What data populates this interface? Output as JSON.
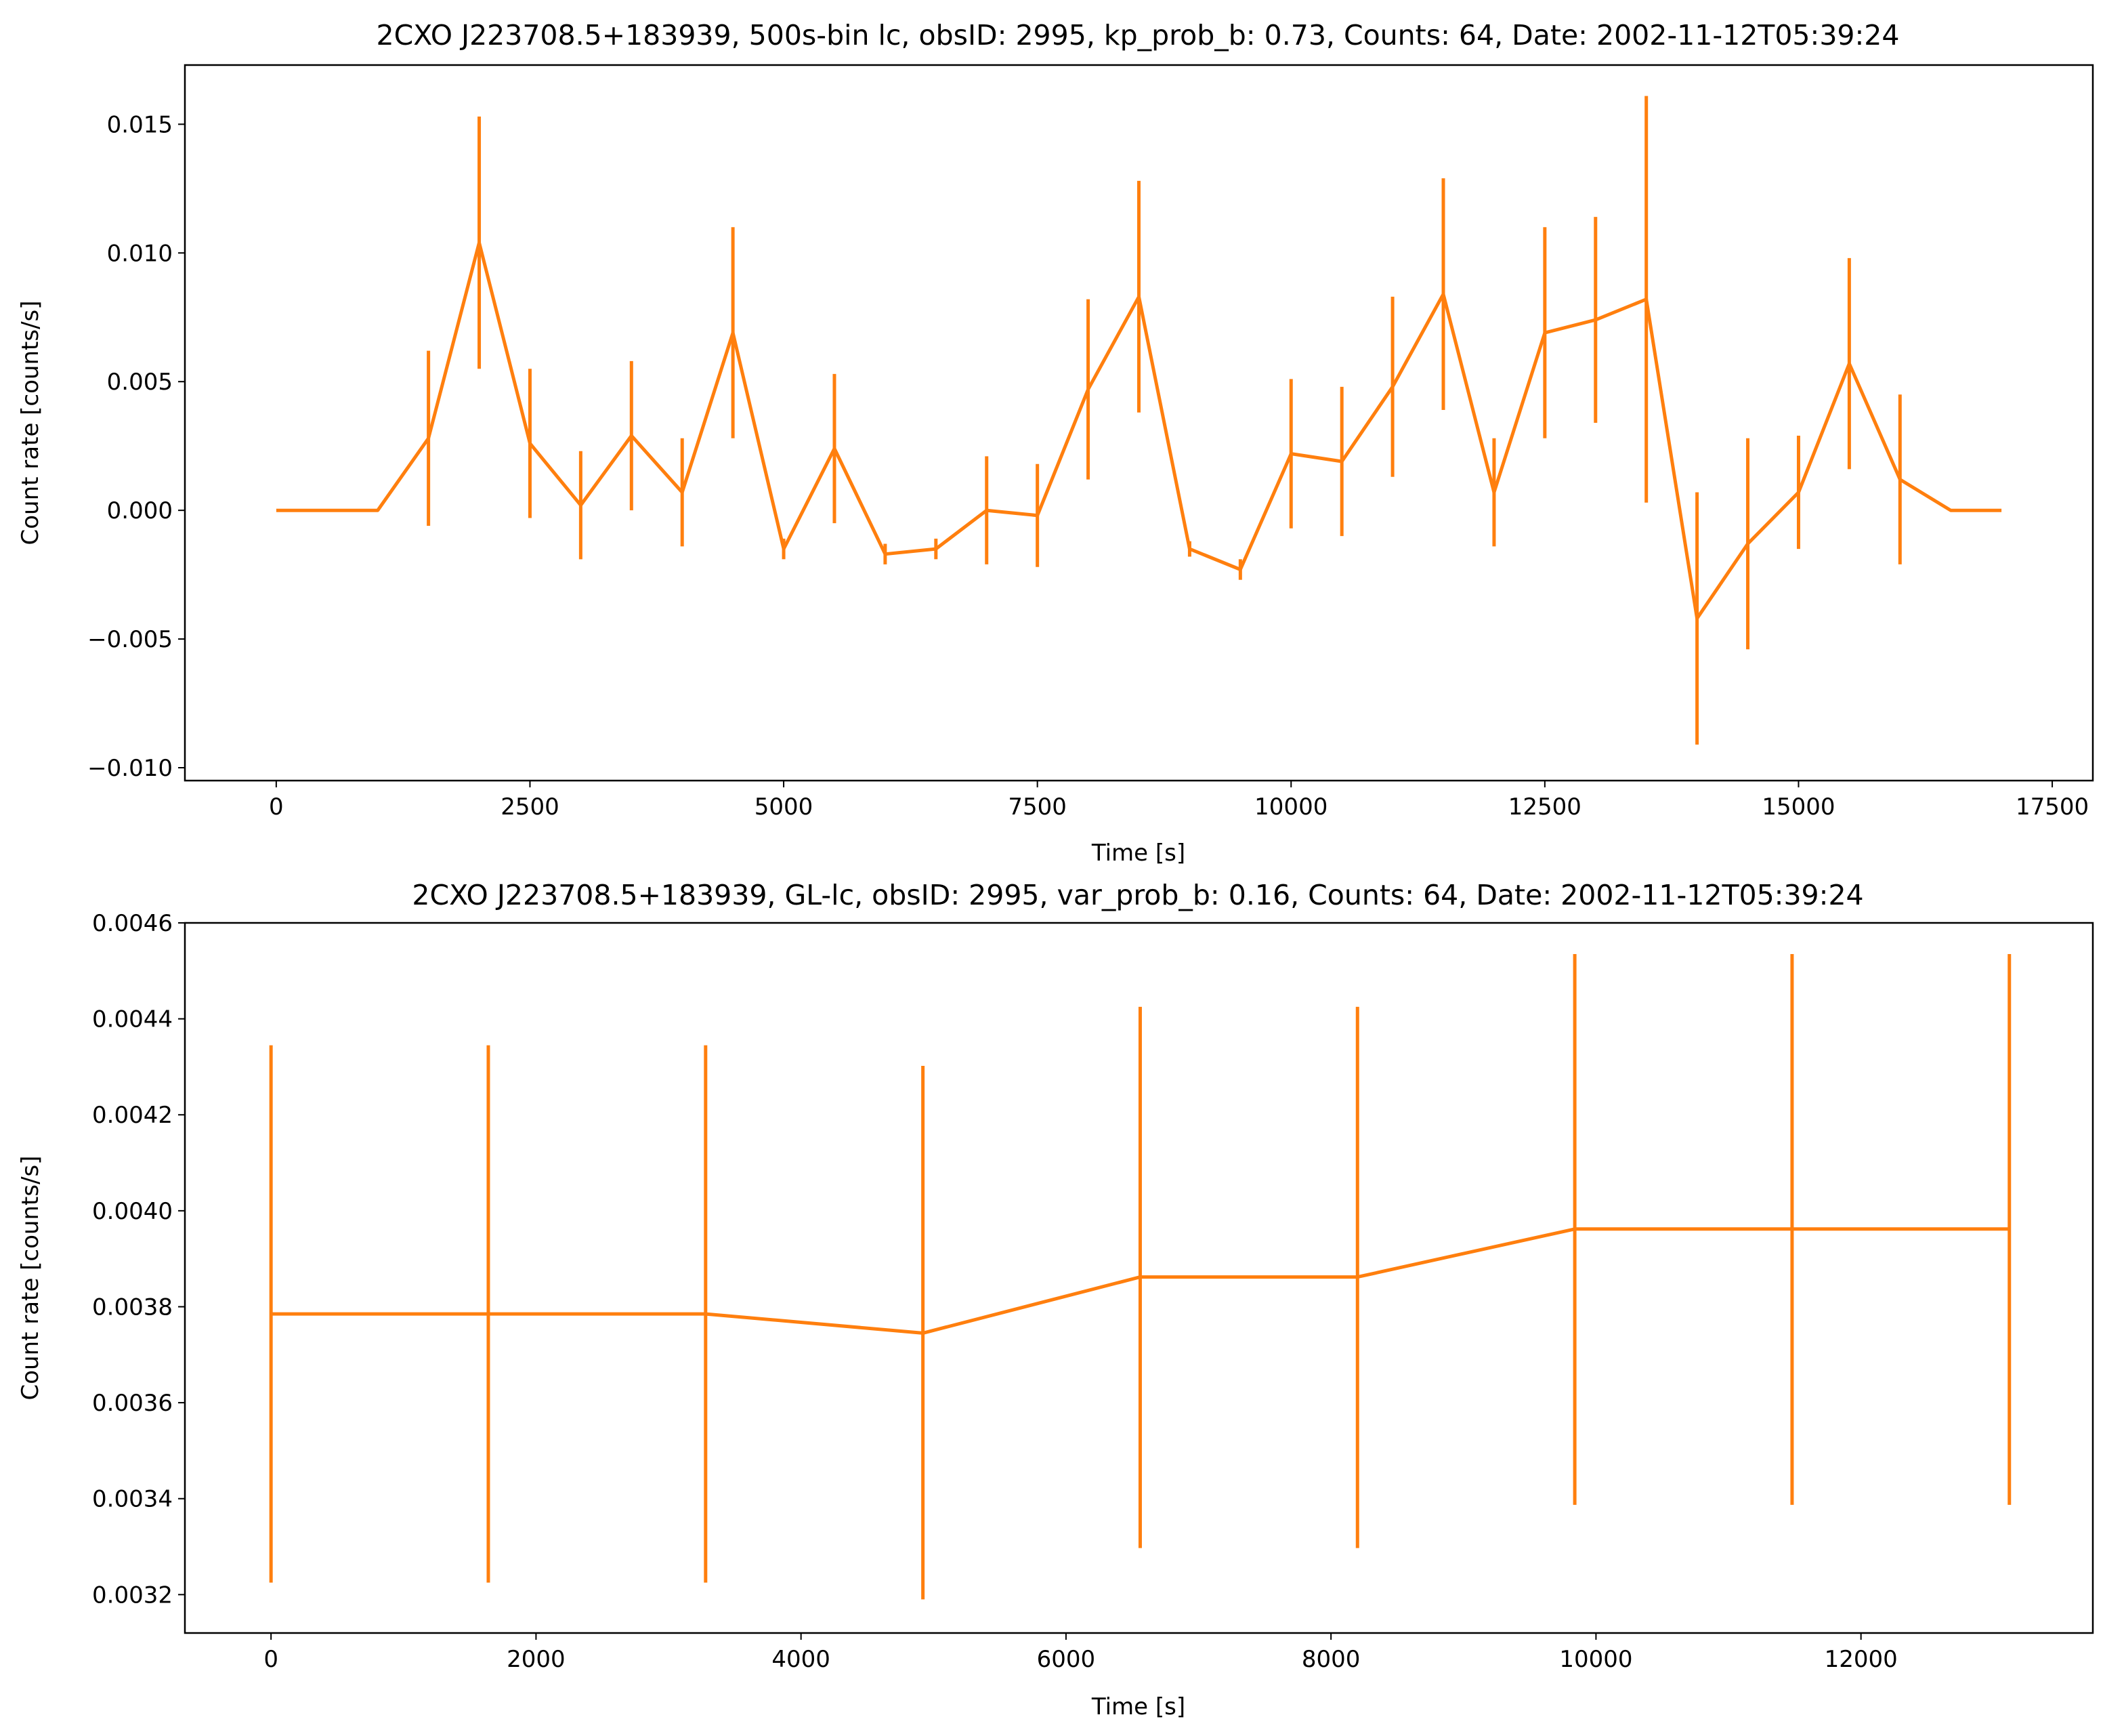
{
  "chart_data": [
    {
      "type": "line",
      "title": "2CXO J223708.5+183939, 500s-bin lc, obsID: 2995, kp_prob_b: 0.73, Counts: 64, Date: 2002-11-12T05:39:24",
      "xlabel": "Time [s]",
      "ylabel": "Count rate [counts/s]",
      "xlim": [
        -900,
        17900
      ],
      "ylim": [
        -0.0105,
        0.0173
      ],
      "xticks": [
        0,
        2500,
        5000,
        7500,
        10000,
        12500,
        15000,
        17500
      ],
      "xtick_labels": [
        "0",
        "2500",
        "5000",
        "7500",
        "10000",
        "12500",
        "15000",
        "17500"
      ],
      "yticks": [
        -0.01,
        -0.005,
        0.0,
        0.005,
        0.01,
        0.015
      ],
      "ytick_labels": [
        "−0.010",
        "−0.005",
        "0.000",
        "0.005",
        "0.010",
        "0.015"
      ],
      "grid": false,
      "color": "#ff7f0e",
      "series": [
        {
          "x": [
            0,
            500,
            1000,
            1500,
            2000,
            2500,
            3000,
            3500,
            4000,
            4500,
            5000,
            5500,
            6000,
            6500,
            7000,
            7500,
            8000,
            8500,
            9000,
            9500,
            10000,
            10500,
            11000,
            11500,
            12000,
            12500,
            13000,
            13500,
            14000,
            14500,
            15000,
            15500,
            16000,
            16500,
            17000
          ],
          "y": [
            0.0,
            0.0,
            0.0,
            0.0028,
            0.0104,
            0.0026,
            0.0002,
            0.0029,
            0.0007,
            0.0069,
            -0.0015,
            0.0024,
            -0.0017,
            -0.0015,
            0.0,
            -0.0002,
            0.0047,
            0.0083,
            -0.0015,
            -0.0023,
            0.0022,
            0.0019,
            0.0048,
            0.0084,
            0.0007,
            0.0069,
            0.0074,
            0.0082,
            -0.0042,
            -0.0013,
            0.0007,
            0.0057,
            0.0012,
            0.0,
            0.0
          ],
          "yerr": [
            0.0,
            0.0,
            0.0,
            0.0034,
            0.0049,
            0.0029,
            0.0021,
            0.0029,
            0.0021,
            0.0041,
            0.0004,
            0.0029,
            0.0004,
            0.0004,
            0.0021,
            0.002,
            0.0035,
            0.0045,
            0.0003,
            0.0004,
            0.0029,
            0.0029,
            0.0035,
            0.0045,
            0.0021,
            0.0041,
            0.004,
            0.0079,
            0.0049,
            0.0041,
            0.0022,
            0.0041,
            0.0033,
            0.0,
            0.0
          ]
        }
      ]
    },
    {
      "type": "line",
      "title": "2CXO J223708.5+183939, GL-lc, obsID: 2995, var_prob_b: 0.16, Counts: 64, Date: 2002-11-12T05:39:24",
      "xlabel": "Time [s]",
      "ylabel": "Count rate [counts/s]",
      "xlim": [
        -650,
        13750
      ],
      "ylim": [
        0.00312,
        0.0046
      ],
      "xticks": [
        0,
        2000,
        4000,
        6000,
        8000,
        10000,
        12000
      ],
      "xtick_labels": [
        "0",
        "2000",
        "4000",
        "6000",
        "8000",
        "10000",
        "12000"
      ],
      "yticks": [
        0.0032,
        0.0034,
        0.0036,
        0.0038,
        0.004,
        0.0042,
        0.0044,
        0.0046
      ],
      "ytick_labels": [
        "0.0032",
        "0.0034",
        "0.0036",
        "0.0038",
        "0.0040",
        "0.0042",
        "0.0044",
        "0.0046"
      ],
      "grid": false,
      "color": "#ff7f0e",
      "series": [
        {
          "x": [
            0,
            1640,
            3280,
            4920,
            6560,
            8200,
            9840,
            11480,
            13120
          ],
          "y": [
            0.003785,
            0.003785,
            0.003785,
            0.003745,
            0.003862,
            0.003862,
            0.003962,
            0.003962,
            0.003962
          ],
          "ylow": [
            0.003225,
            0.003225,
            0.003225,
            0.00319,
            0.003297,
            0.003297,
            0.003387,
            0.003387,
            0.003387
          ],
          "yhigh": [
            0.004345,
            0.004345,
            0.004345,
            0.004302,
            0.004425,
            0.004425,
            0.004535,
            0.004535,
            0.004535
          ]
        }
      ]
    }
  ]
}
